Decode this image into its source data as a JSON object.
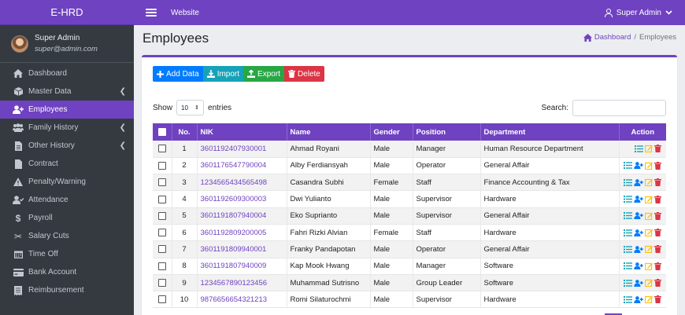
{
  "app": {
    "brand": "E-HRD"
  },
  "user": {
    "name": "Super Admin",
    "email": "super@admin.com"
  },
  "topbar": {
    "website": "Website",
    "user_menu": "Super Admin"
  },
  "sidebar": {
    "items": [
      {
        "label": "Dashboard",
        "icon": "home-icon"
      },
      {
        "label": "Master Data",
        "icon": "box-icon",
        "chevron": true
      },
      {
        "label": "Employees",
        "icon": "user-plus-icon",
        "active": true
      },
      {
        "label": "Family History",
        "icon": "users-icon",
        "chevron": true
      },
      {
        "label": "Other History",
        "icon": "file-icon",
        "chevron": true
      },
      {
        "label": "Contract",
        "icon": "file-icon"
      },
      {
        "label": "Penalty/Warning",
        "icon": "warning-icon"
      },
      {
        "label": "Attendance",
        "icon": "user-check-icon"
      },
      {
        "label": "Payroll",
        "icon": "dollar-icon"
      },
      {
        "label": "Salary Cuts",
        "icon": "cut-icon"
      },
      {
        "label": "Time Off",
        "icon": "calendar-icon"
      },
      {
        "label": "Bank Account",
        "icon": "credit-card-icon"
      },
      {
        "label": "Reimbursement",
        "icon": "receipt-icon"
      }
    ]
  },
  "page": {
    "title": "Employees"
  },
  "breadcrumb": {
    "home": "Dashboard",
    "separator": "/",
    "current": "Employees"
  },
  "toolbar": {
    "add": "Add Data",
    "import": "Import",
    "export": "Export",
    "delete": "Delete"
  },
  "table_controls": {
    "show": "Show",
    "entries_value": "10",
    "entries": "entries",
    "search_label": "Search:"
  },
  "table": {
    "headers": [
      "No.",
      "NIK",
      "Name",
      "Gender",
      "Position",
      "Department",
      "Action"
    ],
    "rows": [
      {
        "no": "1",
        "nik": "3601192407930001",
        "name": "Ahmad Royani",
        "gender": "Male",
        "position": "Manager",
        "department": "Human Resource Department"
      },
      {
        "no": "2",
        "nik": "3601176547790004",
        "name": "Alby Ferdiansyah",
        "gender": "Male",
        "position": "Operator",
        "department": "General Affair"
      },
      {
        "no": "3",
        "nik": "1234565434565498",
        "name": "Casandra Subhi",
        "gender": "Female",
        "position": "Staff",
        "department": "Finance Accounting & Tax"
      },
      {
        "no": "4",
        "nik": "3601192609300003",
        "name": "Dwi Yulianto",
        "gender": "Male",
        "position": "Supervisor",
        "department": "Hardware"
      },
      {
        "no": "5",
        "nik": "3601191807940004",
        "name": "Eko Suprianto",
        "gender": "Male",
        "position": "Supervisor",
        "department": "General Affair"
      },
      {
        "no": "6",
        "nik": "3601192809200005",
        "name": "Fahri Rizki Alvian",
        "gender": "Female",
        "position": "Staff",
        "department": "Hardware"
      },
      {
        "no": "7",
        "nik": "3601191809940001",
        "name": "Franky Pandapotan",
        "gender": "Male",
        "position": "Operator",
        "department": "General Affair"
      },
      {
        "no": "8",
        "nik": "3601191807940009",
        "name": "Kap Mook Hwang",
        "gender": "Male",
        "position": "Manager",
        "department": "Software"
      },
      {
        "no": "9",
        "nik": "1234567890123456",
        "name": "Muhammad Sutrisno",
        "gender": "Male",
        "position": "Group Leader",
        "department": "Software"
      },
      {
        "no": "10",
        "nik": "9876656654321213",
        "name": "Romi Silaturochmi",
        "gender": "Male",
        "position": "Supervisor",
        "department": "Hardware"
      }
    ]
  },
  "colors": {
    "accent": "#6f42c1",
    "sidebar": "#343a40",
    "blue": "#007bff",
    "teal": "#17a2b8",
    "green": "#28a745",
    "red": "#dc3545"
  }
}
